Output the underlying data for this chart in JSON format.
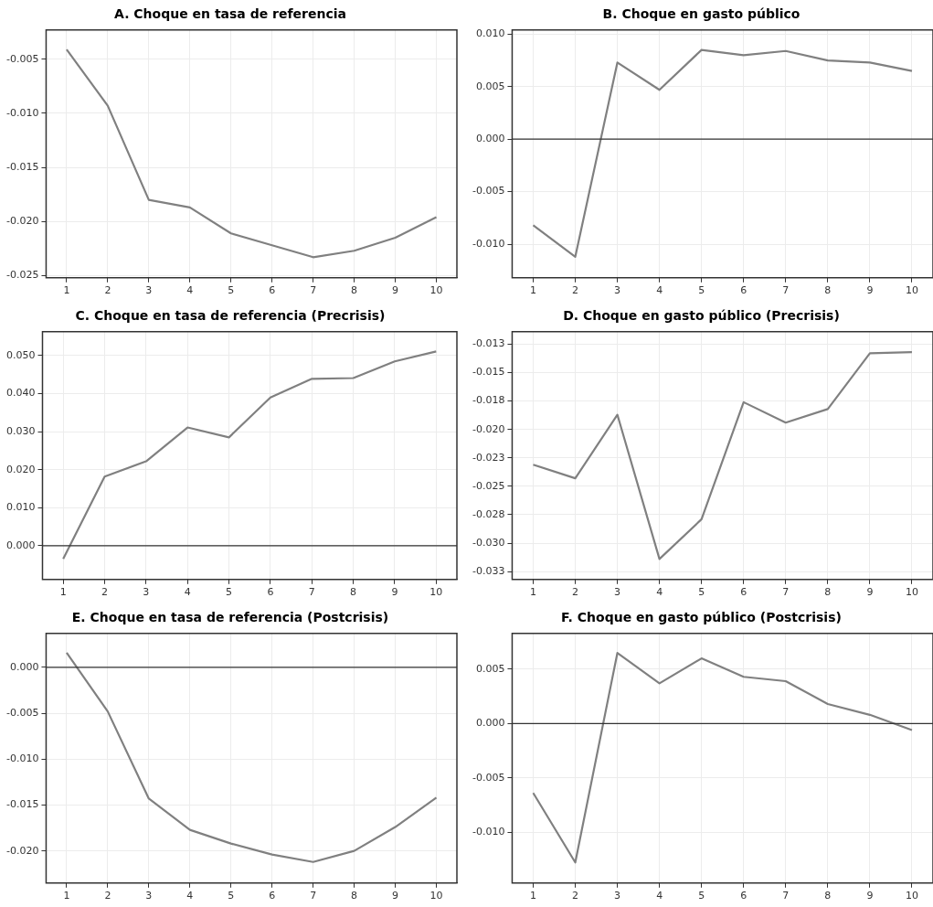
{
  "chart_data": [
    {
      "type": "line",
      "title": "A. Choque en tasa de referencia",
      "categories": [
        "1",
        "2",
        "3",
        "4",
        "5",
        "6",
        "7",
        "8",
        "9",
        "10"
      ],
      "series": [
        {
          "color": "#808080",
          "values": [
            -0.0041,
            -0.0093,
            -0.018,
            -0.0187,
            -0.0211,
            -0.0222,
            -0.0233,
            -0.0227,
            -0.0215,
            -0.0196
          ]
        }
      ],
      "ylim": [
        -0.0252,
        -0.0023
      ],
      "yticks": [
        {
          "value": -0.025,
          "label": "-0.025"
        },
        {
          "value": -0.02,
          "label": "-0.020"
        },
        {
          "value": -0.015,
          "label": "-0.015"
        },
        {
          "value": -0.01,
          "label": "-0.010"
        },
        {
          "value": -0.005,
          "label": "-0.005"
        }
      ],
      "grid": true,
      "legend": false
    },
    {
      "type": "line",
      "title": "B. Choque en gasto público",
      "categories": [
        "1",
        "2",
        "3",
        "4",
        "5",
        "6",
        "7",
        "8",
        "9",
        "10"
      ],
      "series": [
        {
          "color": "#808080",
          "values": [
            -0.0082,
            -0.0112,
            0.0073,
            0.0047,
            0.0085,
            0.008,
            0.0084,
            0.0075,
            0.0073,
            0.0065
          ]
        }
      ],
      "ylim": [
        -0.0132,
        0.0104
      ],
      "yticks": [
        {
          "value": -0.01,
          "label": "-0.010"
        },
        {
          "value": -0.005,
          "label": "-0.005"
        },
        {
          "value": 0,
          "label": "0.000"
        },
        {
          "value": 0.005,
          "label": "0.005"
        },
        {
          "value": 0.01,
          "label": "0.010"
        }
      ],
      "grid": true,
      "legend": false,
      "ref_lines": [
        {
          "axis": "y",
          "value": 0,
          "color": "#333333"
        }
      ]
    },
    {
      "type": "line",
      "title": "C. Choque en tasa de referencia (Precrisis)",
      "categories": [
        "1",
        "2",
        "3",
        "4",
        "5",
        "6",
        "7",
        "8",
        "9",
        "10"
      ],
      "series": [
        {
          "color": "#808080",
          "values": [
            -0.0035,
            0.0182,
            0.0222,
            0.0311,
            0.0285,
            0.039,
            0.0439,
            0.0441,
            0.0485,
            0.0511
          ]
        }
      ],
      "ylim": [
        -0.0089,
        0.0563
      ],
      "yticks": [
        {
          "value": 0,
          "label": "0.000"
        },
        {
          "value": 0.01,
          "label": "0.010"
        },
        {
          "value": 0.02,
          "label": "0.020"
        },
        {
          "value": 0.03,
          "label": "0.030"
        },
        {
          "value": 0.04,
          "label": "0.040"
        },
        {
          "value": 0.05,
          "label": "0.050"
        }
      ],
      "grid": true,
      "legend": false,
      "ref_lines": [
        {
          "axis": "y",
          "value": 0,
          "color": "#333333"
        }
      ]
    },
    {
      "type": "line",
      "title": "D. Choque en gasto público (Precrisis)",
      "categories": [
        "1",
        "2",
        "3",
        "4",
        "5",
        "6",
        "7",
        "8",
        "9",
        "10"
      ],
      "series": [
        {
          "color": "#808080",
          "values": [
            -0.0231,
            -0.0243,
            -0.0187,
            -0.0314,
            -0.0279,
            -0.0176,
            -0.0194,
            -0.0182,
            -0.0133,
            -0.0132
          ]
        }
      ],
      "ylim": [
        -0.0332,
        -0.0114
      ],
      "yticks": [
        {
          "value": -0.0325,
          "label": "-0.033"
        },
        {
          "value": -0.03,
          "label": "-0.030"
        },
        {
          "value": -0.0275,
          "label": "-0.028"
        },
        {
          "value": -0.025,
          "label": "-0.025"
        },
        {
          "value": -0.0225,
          "label": "-0.023"
        },
        {
          "value": -0.02,
          "label": "-0.020"
        },
        {
          "value": -0.0175,
          "label": "-0.018"
        },
        {
          "value": -0.015,
          "label": "-0.015"
        },
        {
          "value": -0.0125,
          "label": "-0.013"
        }
      ],
      "grid": true,
      "legend": false
    },
    {
      "type": "line",
      "title": "E. Choque en tasa de referencia (Postcrisis)",
      "categories": [
        "1",
        "2",
        "3",
        "4",
        "5",
        "6",
        "7",
        "8",
        "9",
        "10"
      ],
      "series": [
        {
          "color": "#808080",
          "values": [
            0.0016,
            -0.0048,
            -0.0143,
            -0.0177,
            -0.0192,
            -0.0204,
            -0.0212,
            -0.02,
            -0.0174,
            -0.0142
          ]
        }
      ],
      "ylim": [
        -0.0235,
        0.0037
      ],
      "yticks": [
        {
          "value": -0.02,
          "label": "-0.020"
        },
        {
          "value": -0.015,
          "label": "-0.015"
        },
        {
          "value": -0.01,
          "label": "-0.010"
        },
        {
          "value": -0.005,
          "label": "-0.005"
        },
        {
          "value": 0,
          "label": "0.000"
        }
      ],
      "grid": true,
      "legend": false,
      "ref_lines": [
        {
          "axis": "y",
          "value": 0,
          "color": "#333333"
        }
      ]
    },
    {
      "type": "line",
      "title": "F. Choque en gasto público (Postcrisis)",
      "categories": [
        "1",
        "2",
        "3",
        "4",
        "5",
        "6",
        "7",
        "8",
        "9",
        "10"
      ],
      "series": [
        {
          "color": "#808080",
          "values": [
            -0.0064,
            -0.0128,
            0.0065,
            0.0037,
            0.006,
            0.0043,
            0.0039,
            0.0018,
            0.0008,
            -0.0006
          ]
        }
      ],
      "ylim": [
        -0.0147,
        0.0083
      ],
      "yticks": [
        {
          "value": -0.01,
          "label": "-0.010"
        },
        {
          "value": -0.005,
          "label": "-0.005"
        },
        {
          "value": 0,
          "label": "0.000"
        },
        {
          "value": 0.005,
          "label": "0.005"
        }
      ],
      "grid": true,
      "legend": false,
      "ref_lines": [
        {
          "axis": "y",
          "value": 0,
          "color": "#333333"
        }
      ]
    }
  ]
}
